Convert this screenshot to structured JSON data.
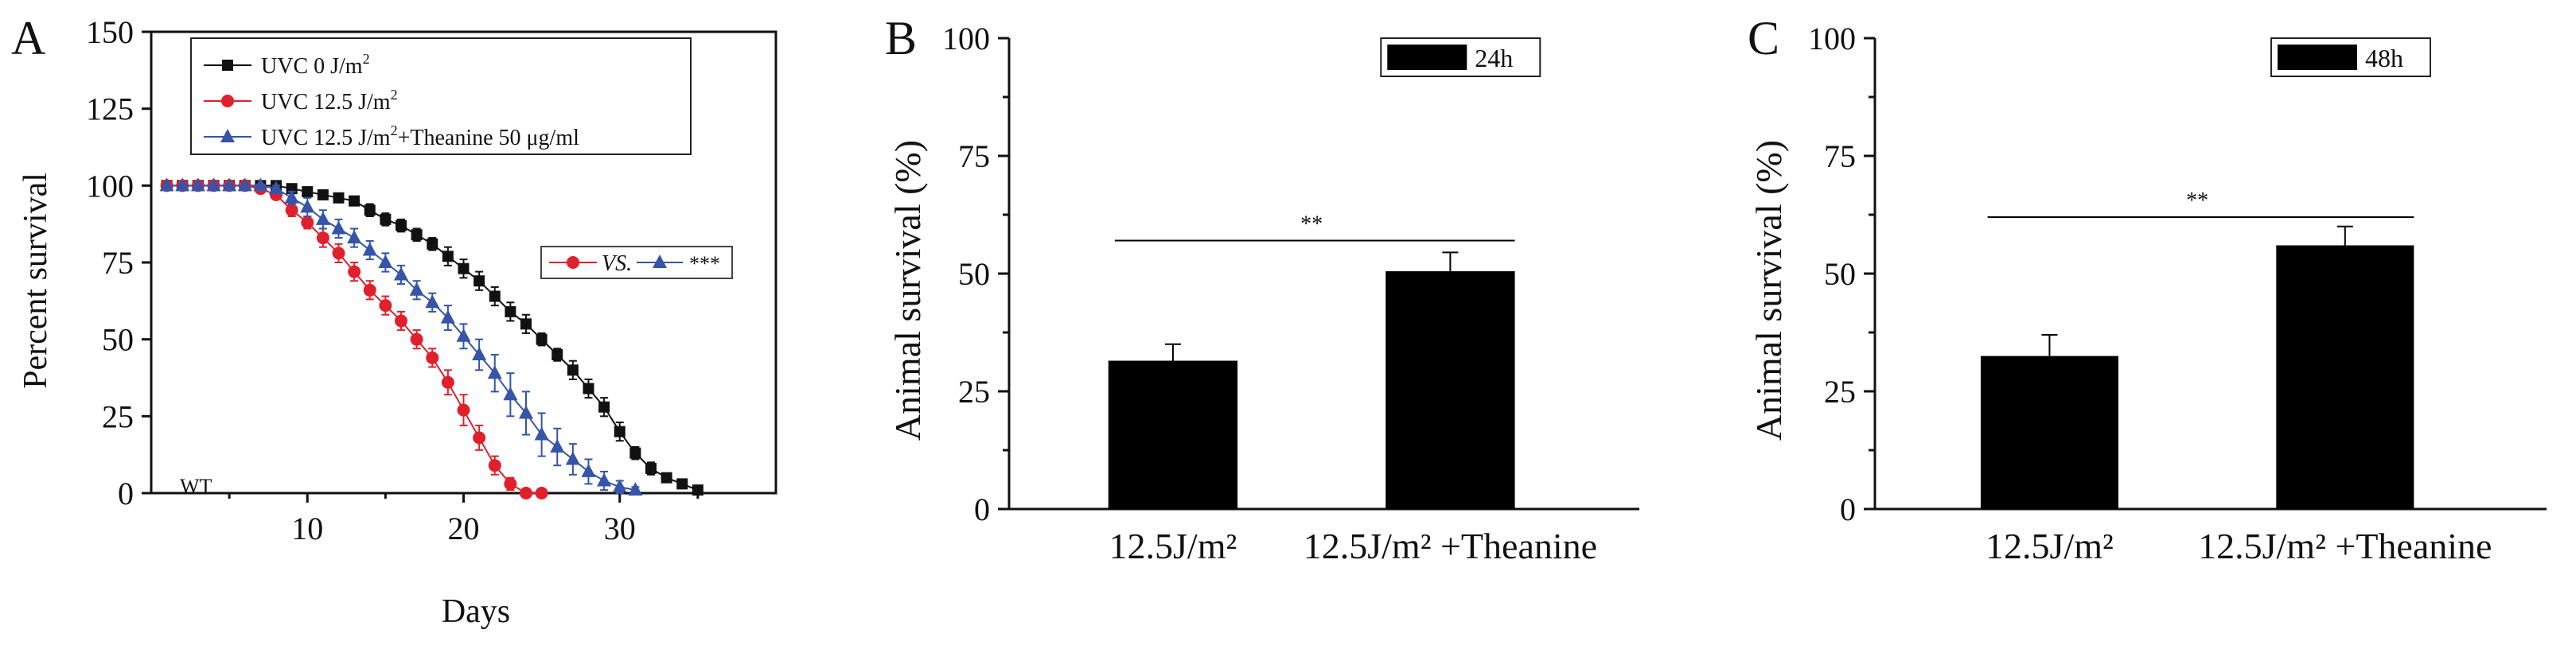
{
  "chart_data": [
    {
      "panel_letter": "A",
      "type": "line",
      "xlabel": "Days",
      "ylabel": "Percent survival",
      "xlim": [
        0,
        40
      ],
      "ylim": [
        0,
        150
      ],
      "x_ticks": [
        10,
        20,
        30
      ],
      "y_ticks": [
        0,
        25,
        50,
        75,
        100,
        125,
        150
      ],
      "legend": {
        "placement": "top-left",
        "entries": [
          {
            "label": "UVC 0 J/m",
            "sup": "2",
            "suffix": "",
            "series": 0
          },
          {
            "label": "UVC 12.5 J/m",
            "sup": "2",
            "suffix": "",
            "series": 1
          },
          {
            "label": "UVC 12.5 J/m",
            "sup": "2",
            "suffix": "+Theanine 50 μg/ml",
            "series": 2
          }
        ]
      },
      "stat_annotation": {
        "vs_text": "VS.",
        "significance": "***"
      },
      "strain_label": "WT",
      "series": [
        {
          "color": "#111111",
          "marker": "square",
          "x": [
            1,
            2,
            3,
            4,
            5,
            6,
            7,
            8,
            9,
            10,
            11,
            12,
            13,
            14,
            15,
            16,
            17,
            18,
            19,
            20,
            21,
            22,
            23,
            24,
            25,
            26,
            27,
            28,
            29,
            30,
            31,
            32,
            33,
            34,
            35
          ],
          "y": [
            100,
            100,
            100,
            100,
            100,
            100,
            100,
            100,
            99,
            98,
            97,
            96,
            95,
            92,
            89,
            87,
            84,
            81,
            77,
            73,
            69,
            64,
            59,
            55,
            50,
            45,
            40,
            34,
            28,
            20,
            13,
            8,
            5,
            3,
            1
          ],
          "err": [
            0,
            0,
            0,
            0,
            0,
            0,
            0,
            0,
            0,
            0,
            0,
            0,
            1,
            2,
            2,
            2,
            2,
            2,
            3,
            3,
            3,
            3,
            3,
            3,
            2,
            2,
            3,
            3,
            3,
            3,
            2,
            2,
            1,
            1,
            0
          ]
        },
        {
          "color": "#e0202c",
          "marker": "circle",
          "x": [
            1,
            2,
            3,
            4,
            5,
            6,
            7,
            8,
            9,
            10,
            11,
            12,
            13,
            14,
            15,
            16,
            17,
            18,
            19,
            20,
            21,
            22,
            23,
            24,
            25
          ],
          "y": [
            100,
            100,
            100,
            100,
            100,
            100,
            99,
            97,
            92,
            88,
            83,
            78,
            72,
            66,
            61,
            56,
            50,
            44,
            36,
            27,
            18,
            9,
            3,
            0,
            0
          ],
          "err": [
            0,
            0,
            0,
            0,
            0,
            0,
            0,
            1,
            2,
            2,
            3,
            3,
            3,
            3,
            3,
            3,
            3,
            3,
            4,
            5,
            4,
            3,
            2,
            0,
            0
          ]
        },
        {
          "color": "#3654a8",
          "marker": "triangle",
          "x": [
            1,
            2,
            3,
            4,
            5,
            6,
            7,
            8,
            9,
            10,
            11,
            12,
            13,
            14,
            15,
            16,
            17,
            18,
            19,
            20,
            21,
            22,
            23,
            24,
            25,
            26,
            27,
            28,
            29,
            30,
            31
          ],
          "y": [
            100,
            100,
            100,
            100,
            100,
            100,
            100,
            99,
            96,
            93,
            89,
            86,
            83,
            79,
            75,
            71,
            66,
            62,
            57,
            51,
            45,
            39,
            32,
            26,
            19,
            15,
            11,
            7,
            4,
            2,
            1
          ],
          "err": [
            0,
            0,
            0,
            0,
            0,
            0,
            0,
            1,
            2,
            3,
            3,
            3,
            3,
            3,
            3,
            3,
            3,
            3,
            4,
            4,
            5,
            6,
            7,
            7,
            7,
            6,
            5,
            4,
            3,
            2,
            1
          ]
        }
      ]
    },
    {
      "panel_letter": "B",
      "type": "bar",
      "ylabel": "Animal survival (%)",
      "ylim": [
        0,
        100
      ],
      "y_ticks": [
        0,
        25,
        50,
        75,
        100
      ],
      "categories": [
        "12.5J/m²",
        "12.5J/m²  +Theanine"
      ],
      "values": [
        31.5,
        50.5
      ],
      "errors": [
        3.5,
        4
      ],
      "legend": {
        "label": "24h",
        "placement": "top-right"
      },
      "significance": "**"
    },
    {
      "panel_letter": "C",
      "type": "bar",
      "ylabel": "Animal survival (%)",
      "ylim": [
        0,
        100
      ],
      "y_ticks": [
        0,
        25,
        50,
        75,
        100
      ],
      "categories": [
        "12.5J/m²",
        "12.5J/m²  +Theanine"
      ],
      "values": [
        32.5,
        56
      ],
      "errors": [
        4.5,
        4
      ],
      "legend": {
        "label": "48h",
        "placement": "top-right"
      },
      "significance": "**"
    }
  ]
}
